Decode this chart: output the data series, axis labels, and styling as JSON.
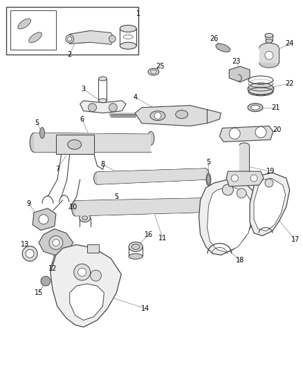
{
  "background_color": "#ffffff",
  "line_color": "#444444",
  "label_color": "#000000",
  "fig_width": 4.38,
  "fig_height": 5.33,
  "dpi": 100
}
